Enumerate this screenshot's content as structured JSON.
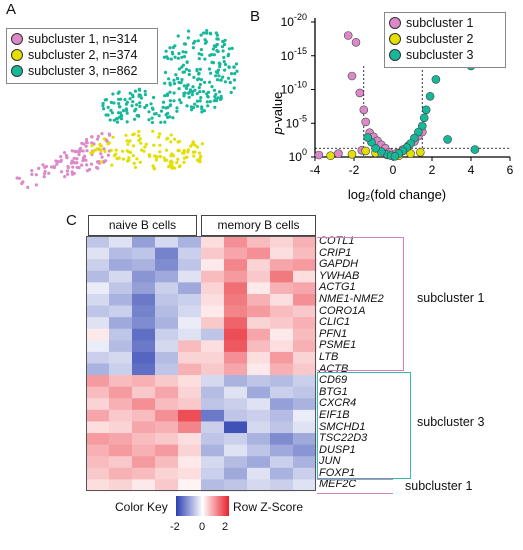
{
  "panels": {
    "a": "A",
    "b": "B",
    "c": "C"
  },
  "colors": {
    "subcluster1": "#dd88c8",
    "subcluster2": "#e3e000",
    "subcluster3": "#17b79a",
    "bracket1": "#d77fc0",
    "bracket3": "#39b8ad"
  },
  "legend": [
    {
      "label": "subcluster 1, n=314",
      "color": "#dd88c8"
    },
    {
      "label": "subcluster 2, n=374",
      "color": "#e3e000"
    },
    {
      "label": "subcluster 3, n=862",
      "color": "#17b79a"
    }
  ],
  "chart_data": [
    {
      "type": "scatter",
      "panel": "A",
      "title": "",
      "xlabel": "",
      "ylabel": "",
      "series": [
        {
          "name": "subcluster 1",
          "n": 314
        },
        {
          "name": "subcluster 2",
          "n": 374
        },
        {
          "name": "subcluster 3",
          "n": 862
        }
      ]
    },
    {
      "type": "scatter",
      "panel": "B",
      "xlabel": "log₂(fold change)",
      "ylabel": "p-value",
      "ylabel_prefix": "p",
      "ylabel_suffix": "-value",
      "xlim": [
        -4,
        6
      ],
      "ylim_exponent": [
        0,
        -20
      ],
      "xticks": [
        "-4",
        "-2",
        "0",
        "2",
        "4",
        "6"
      ],
      "yticks": [
        {
          "base": "10",
          "exp": "0"
        },
        {
          "base": "10",
          "exp": "-5"
        },
        {
          "base": "10",
          "exp": "-10"
        },
        {
          "base": "10",
          "exp": "-15"
        },
        {
          "base": "10",
          "exp": "-20"
        }
      ],
      "thresholds": {
        "x": [
          -1.5,
          1.5
        ],
        "y_exp": -1.3
      },
      "legend": [
        "subcluster 1",
        "subcluster 2",
        "subcluster 3"
      ],
      "series": [
        {
          "name": "subcluster 1",
          "points": [
            [
              -2.3,
              -18
            ],
            [
              -1.9,
              -17
            ],
            [
              -2.1,
              -12
            ],
            [
              -1.7,
              -9.5
            ],
            [
              -1.5,
              -7
            ],
            [
              -1.4,
              -5.2
            ],
            [
              -1.2,
              -3.6
            ],
            [
              -1.0,
              -3.0
            ],
            [
              -0.8,
              -2.4
            ],
            [
              -0.6,
              -1.8
            ],
            [
              -0.4,
              -1.3
            ],
            [
              -0.2,
              -0.7
            ],
            [
              0.2,
              -0.6
            ],
            [
              0.5,
              -1.1
            ],
            [
              0.8,
              -1.7
            ],
            [
              1.1,
              -2.3
            ],
            [
              1.3,
              -3.1
            ],
            [
              1.5,
              -3.7
            ],
            [
              -3.8,
              -0.3
            ],
            [
              -2.8,
              -0.5
            ],
            [
              -1.6,
              -1.0
            ]
          ]
        },
        {
          "name": "subcluster 2",
          "points": [
            [
              -2.1,
              -0.4
            ],
            [
              -1.4,
              -0.9
            ],
            [
              -0.9,
              -0.6
            ],
            [
              -0.3,
              -0.3
            ],
            [
              0.3,
              -0.2
            ],
            [
              0.9,
              -0.5
            ],
            [
              1.4,
              -0.7
            ],
            [
              -3.2,
              -0.2
            ]
          ]
        },
        {
          "name": "subcluster 3",
          "points": [
            [
              2.6,
              -15
            ],
            [
              4.0,
              -13.5
            ],
            [
              2.2,
              -11.5
            ],
            [
              1.9,
              -9
            ],
            [
              1.7,
              -7
            ],
            [
              1.6,
              -5.8
            ],
            [
              1.5,
              -4.6
            ],
            [
              1.3,
              -3.7
            ],
            [
              1.1,
              -2.8
            ],
            [
              0.9,
              -2.0
            ],
            [
              0.7,
              -1.4
            ],
            [
              0.5,
              -0.9
            ],
            [
              0.3,
              -0.5
            ],
            [
              -0.3,
              -0.4
            ],
            [
              -0.6,
              -0.8
            ],
            [
              -0.9,
              -1.3
            ],
            [
              -1.1,
              -2.2
            ],
            [
              -1.3,
              -2.9
            ],
            [
              4.2,
              -1.1
            ],
            [
              2.8,
              -2.6
            ],
            [
              -0.1,
              -0.2
            ],
            [
              0.1,
              -0.1
            ]
          ]
        }
      ]
    },
    {
      "type": "heatmap",
      "panel": "C",
      "column_groups": [
        "naive B cells",
        "memory B cells"
      ],
      "columns_per_group": 5,
      "rows": [
        "COTL1",
        "CRIP1",
        "GAPDH",
        "YWHAB",
        "ACTG1",
        "NME1-NME2",
        "CORO1A",
        "CLIC1",
        "PFN1",
        "PSME1",
        "LTB",
        "ACTB",
        "CD69",
        "BTG1",
        "CXCR4",
        "EIF1B",
        "SMCHD1",
        "TSC22D3",
        "DUSP1",
        "JUN",
        "FOXP1",
        "MEF2C"
      ],
      "row_groups": [
        {
          "label": "subcluster 1",
          "rows": [
            0,
            11
          ]
        },
        {
          "label": "subcluster 3",
          "rows": [
            12,
            20
          ]
        },
        {
          "label": "subcluster 1",
          "rows": [
            21,
            21
          ]
        }
      ],
      "values": [
        [
          -0.6,
          -0.3,
          -1.0,
          -0.4,
          -0.8,
          0.3,
          1.0,
          0.6,
          0.4,
          0.7
        ],
        [
          -0.3,
          -0.7,
          -0.6,
          -1.3,
          -0.5,
          0.5,
          0.8,
          1.0,
          0.3,
          0.6
        ],
        [
          -0.5,
          -0.9,
          -0.8,
          -1.2,
          -0.6,
          0.2,
          1.1,
          0.4,
          0.8,
          0.9
        ],
        [
          -0.7,
          -0.4,
          -1.1,
          -0.9,
          -0.3,
          0.6,
          0.9,
          0.5,
          1.2,
          0.3
        ],
        [
          -0.2,
          -0.6,
          -1.0,
          -0.5,
          -0.9,
          0.4,
          1.3,
          0.2,
          0.7,
          0.8
        ],
        [
          -0.4,
          -0.8,
          -1.4,
          -0.6,
          -0.5,
          0.3,
          1.2,
          0.7,
          0.3,
          1.0
        ],
        [
          -0.6,
          -0.5,
          -1.3,
          -0.7,
          -0.4,
          0.2,
          1.1,
          0.9,
          0.6,
          0.5
        ],
        [
          -0.3,
          -0.9,
          -1.2,
          -0.8,
          -0.2,
          0.5,
          1.4,
          0.4,
          0.5,
          0.7
        ],
        [
          0.2,
          -0.6,
          -1.5,
          -0.5,
          -0.3,
          -0.6,
          1.6,
          0.8,
          0.2,
          0.6
        ],
        [
          -0.2,
          -0.7,
          -1.4,
          -0.4,
          0.6,
          0.3,
          1.5,
          0.6,
          0.3,
          0.7
        ],
        [
          -0.5,
          -0.4,
          -1.6,
          -0.7,
          0.4,
          0.4,
          1.0,
          0.3,
          0.9,
          0.4
        ],
        [
          -0.8,
          -0.5,
          -1.5,
          -0.6,
          0.7,
          0.5,
          0.8,
          0.2,
          0.7,
          0.5
        ],
        [
          0.9,
          0.6,
          0.7,
          0.5,
          0.3,
          -0.4,
          -0.8,
          -0.6,
          -0.7,
          -0.5
        ],
        [
          0.6,
          0.9,
          0.5,
          0.8,
          0.4,
          -0.7,
          -0.3,
          -0.9,
          -0.5,
          -0.6
        ],
        [
          0.4,
          0.7,
          1.0,
          0.6,
          0.5,
          -0.6,
          -0.5,
          -0.3,
          -1.0,
          -0.8
        ],
        [
          0.8,
          0.5,
          0.6,
          1.0,
          1.6,
          -1.4,
          -0.6,
          -0.5,
          -0.7,
          -0.2
        ],
        [
          0.3,
          0.4,
          0.8,
          0.7,
          1.1,
          -0.5,
          -1.8,
          -0.4,
          -0.6,
          -0.3
        ],
        [
          0.9,
          0.8,
          0.6,
          0.5,
          0.3,
          -0.6,
          -0.5,
          -0.8,
          -1.2,
          -0.9
        ],
        [
          0.7,
          0.9,
          0.7,
          0.9,
          0.4,
          -0.8,
          -0.3,
          -0.6,
          -0.9,
          -1.1
        ],
        [
          0.6,
          0.5,
          0.9,
          0.6,
          0.2,
          -0.4,
          -0.7,
          -0.9,
          -0.5,
          -0.8
        ],
        [
          0.5,
          0.7,
          0.6,
          0.4,
          0.3,
          -0.5,
          -0.9,
          -0.3,
          -0.8,
          -0.5
        ],
        [
          0.3,
          0.4,
          0.2,
          0.5,
          0.1,
          -0.7,
          -0.6,
          -0.4,
          -0.5,
          -0.3
        ]
      ],
      "color_key": {
        "title": "Color Key",
        "label": "Row Z-Score",
        "ticks": [
          "-2",
          "0",
          "2"
        ],
        "min": -2,
        "max": 2,
        "low": "#2b3fb0",
        "mid": "#ffffff",
        "high": "#e8212a"
      }
    }
  ]
}
